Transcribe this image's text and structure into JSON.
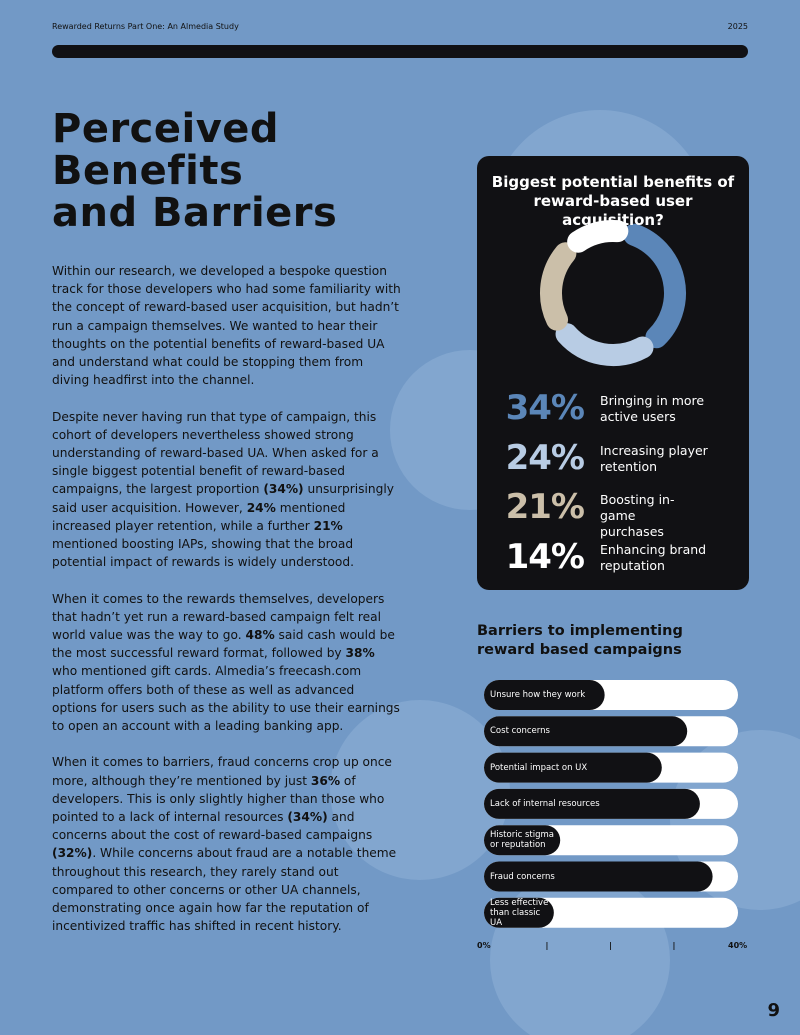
{
  "header": {
    "left": "Rewarded Returns Part One: An Almedia Study",
    "right": "2025"
  },
  "title_lines": [
    "Perceived",
    "Benefits",
    "and Barriers"
  ],
  "body": [
    [
      "Within our research, we developed a bespoke question track for those developers who had some familiarity with the concept of reward-based user acquisition, but hadn’t run a campaign themselves. We wanted to hear their thoughts on the potential benefits of reward-based UA and understand what could be stopping them from diving headfirst into the channel."
    ],
    [
      "Despite never having run that type of campaign, this cohort of developers nevertheless showed strong understanding of reward-based UA. When asked for a single biggest potential benefit of reward-based campaigns, the largest proportion ",
      {
        "b": "(34%)"
      },
      " unsurprisingly said user acquisition. However, ",
      {
        "b": "24%"
      },
      " mentioned increased player retention, while a further ",
      {
        "b": "21%"
      },
      " mentioned boosting IAPs, showing that the broad potential impact of rewards is widely understood."
    ],
    [
      "When it comes to the rewards themselves, developers that hadn’t yet run a reward-based campaign felt real world value was the way to go. ",
      {
        "b": "48%"
      },
      " said cash would be the most successful reward format, followed by ",
      {
        "b": "38%"
      },
      " who mentioned gift cards. Almedia’s freecash.com platform offers both of these as well as advanced options for users such as the ability to use their earnings to open an account with a leading banking app."
    ],
    [
      "When it comes to barriers, fraud concerns crop up once more, although they’re mentioned by just ",
      {
        "b": "36%"
      },
      " of developers. This is only slightly higher than those who pointed to a lack of internal resources ",
      {
        "b": "(34%)"
      },
      " and concerns about the cost of reward-based campaigns ",
      {
        "b": "(32%)"
      },
      ". While concerns about fraud are a notable theme throughout this research, they rarely stand out compared to other concerns or other UA channels, demonstrating once again how far the reputation of incentivized traffic has shifted in recent history."
    ]
  ],
  "page_number": "9",
  "chart_data": [
    {
      "type": "donut",
      "title": "Biggest potential benefits of reward-based user acquisition?",
      "categories": [
        "Bringing in more active users",
        "Increasing player retention",
        "Boosting in-game purchases",
        "Enhancing brand reputation"
      ],
      "values": [
        34,
        24,
        21,
        14
      ],
      "value_labels": [
        "34%",
        "24%",
        "21%",
        "14%"
      ],
      "colors": [
        "#5b86b8",
        "#b8cce4",
        "#cbbfa9",
        "#ffffff"
      ]
    },
    {
      "type": "hbar",
      "title": "Barriers to implementing reward based campaigns",
      "categories": [
        "Unsure how they work",
        "Cost concerns",
        "Potential impact on UX",
        "Lack of internal resources",
        "Historic stigma or reputation",
        "Fraud concerns",
        "Less effective than classic UA"
      ],
      "values": [
        19,
        32,
        28,
        34,
        12,
        36,
        11
      ],
      "color": "#111114",
      "track_color": "#ffffff",
      "xlim": [
        0,
        40
      ],
      "xticks": [
        {
          "value": 0,
          "label": "0%"
        },
        {
          "value": 10,
          "label": "|"
        },
        {
          "value": 20,
          "label": "|"
        },
        {
          "value": 30,
          "label": "|"
        },
        {
          "value": 40,
          "label": "40%"
        }
      ]
    }
  ]
}
